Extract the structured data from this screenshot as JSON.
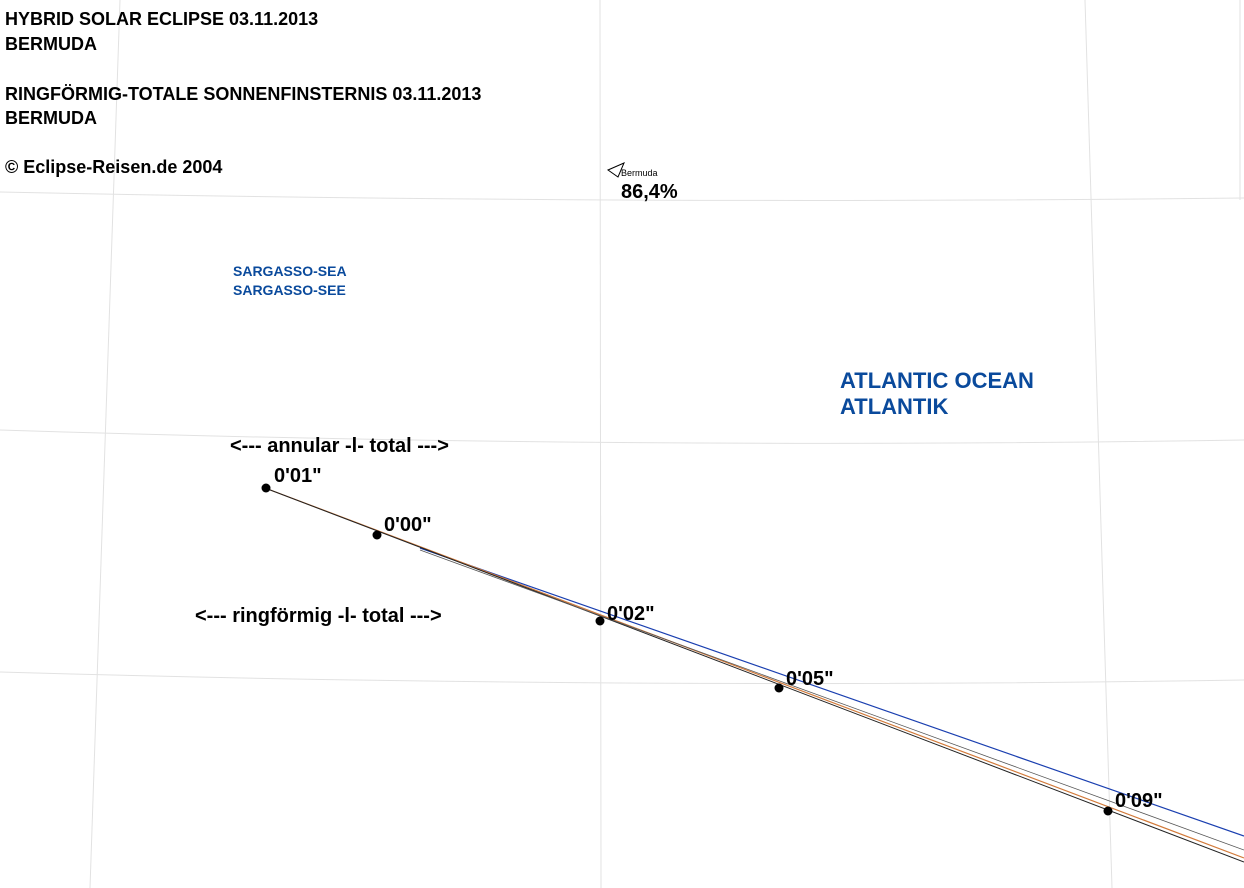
{
  "header": {
    "lines": [
      "HYBRID SOLAR ECLIPSE 03.11.2013",
      "BERMUDA",
      "RINGFÖRMIG-TOTALE SONNENFINSTERNIS 03.11.2013",
      "BERMUDA"
    ],
    "copyright": "© Eclipse-Reisen.de 2004"
  },
  "place": {
    "name": "Bermuda",
    "magnitude": "86,4%"
  },
  "seas": [
    {
      "lines": [
        "SARGASSO-SEA",
        "SARGASSO-SEE"
      ]
    },
    {
      "lines": [
        "ATLANTIC OCEAN",
        "ATLANTIK"
      ]
    }
  ],
  "notes": [
    "<--- annular -l- total --->",
    "<--- ringförmig -l- total --->"
  ],
  "path_points": [
    "0'01\"",
    "0'00\"",
    "0'02\"",
    "0'05\"",
    "0'09\""
  ]
}
